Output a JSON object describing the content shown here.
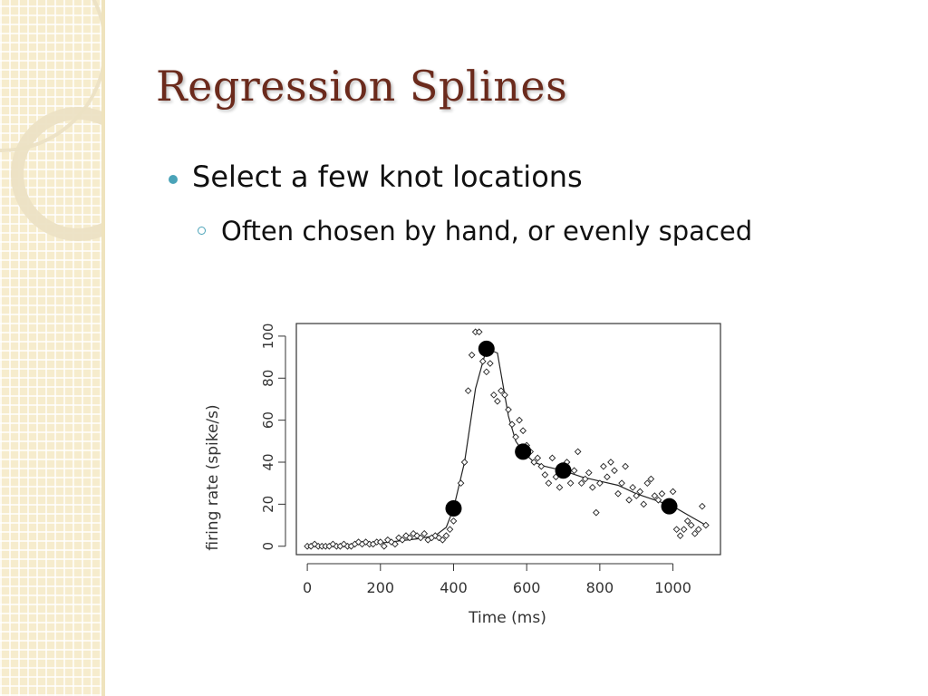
{
  "slide": {
    "title": "Regression Splines",
    "bullets": [
      {
        "text": "Select a few knot locations",
        "sub": [
          "Often chosen by hand, or evenly spaced"
        ]
      }
    ],
    "accent_color": "#4aa3b8",
    "title_color": "#6b2a1c",
    "sidebar_color": "#f6eccd"
  },
  "chart_data": {
    "type": "scatter",
    "xlabel": "Time (ms)",
    "ylabel": "firing rate (spike/s)",
    "xlim": [
      -30,
      1130
    ],
    "ylim": [
      -4,
      106
    ],
    "xticks": [
      0,
      200,
      400,
      600,
      800,
      1000
    ],
    "yticks": [
      0,
      20,
      40,
      60,
      80,
      100
    ],
    "grid": false,
    "legend": "none",
    "series": [
      {
        "kind": "points",
        "marker": "open-diamond",
        "x": [
          0,
          10,
          20,
          30,
          40,
          50,
          60,
          70,
          80,
          90,
          100,
          110,
          120,
          130,
          140,
          150,
          160,
          170,
          180,
          190,
          200,
          210,
          220,
          230,
          240,
          250,
          260,
          270,
          280,
          290,
          300,
          310,
          320,
          330,
          340,
          350,
          360,
          370,
          380,
          390,
          400,
          410,
          420,
          430,
          440,
          450,
          460,
          470,
          480,
          490,
          500,
          510,
          520,
          530,
          540,
          550,
          560,
          570,
          580,
          590,
          600,
          610,
          620,
          630,
          640,
          650,
          660,
          670,
          680,
          690,
          700,
          710,
          720,
          730,
          740,
          750,
          760,
          770,
          780,
          790,
          800,
          810,
          820,
          830,
          840,
          850,
          860,
          870,
          880,
          890,
          900,
          910,
          920,
          930,
          940,
          950,
          960,
          970,
          980,
          990,
          1000,
          1010,
          1020,
          1030,
          1040,
          1050,
          1060,
          1070,
          1080,
          1090
        ],
        "y": [
          0,
          0,
          1,
          0,
          0,
          0,
          0,
          1,
          0,
          0,
          1,
          0,
          0,
          1,
          2,
          1,
          2,
          1,
          1,
          2,
          2,
          0,
          3,
          2,
          1,
          4,
          3,
          5,
          4,
          6,
          5,
          4,
          6,
          3,
          4,
          5,
          4,
          3,
          5,
          8,
          12,
          20,
          30,
          40,
          74,
          91,
          102,
          102,
          88,
          83,
          87,
          72,
          69,
          74,
          72,
          65,
          58,
          52,
          60,
          55,
          48,
          45,
          40,
          42,
          38,
          34,
          30,
          42,
          33,
          28,
          38,
          40,
          30,
          36,
          45,
          30,
          32,
          35,
          28,
          16,
          30,
          38,
          33,
          40,
          36,
          25,
          30,
          38,
          22,
          28,
          24,
          26,
          20,
          30,
          32,
          24,
          22,
          25,
          18,
          21,
          26,
          8,
          5,
          8,
          12,
          10,
          6,
          8,
          19,
          10
        ]
      },
      {
        "kind": "line",
        "name": "",
        "x": [
          0,
          100,
          200,
          300,
          350,
          380,
          400,
          430,
          460,
          490,
          520,
          550,
          570,
          590,
          620,
          650,
          700,
          750,
          800,
          850,
          900,
          950,
          1000,
          1040,
          1090
        ],
        "y": [
          0,
          0.5,
          1.5,
          3.5,
          5,
          9,
          18,
          40,
          75,
          94,
          92,
          62,
          50,
          45,
          40,
          38,
          36,
          33,
          31,
          29,
          25,
          22,
          19,
          15,
          10
        ]
      },
      {
        "kind": "knots",
        "marker": "filled-circle",
        "x": [
          400,
          490,
          590,
          700,
          990
        ],
        "y": [
          18,
          94,
          45,
          36,
          19
        ]
      }
    ]
  }
}
